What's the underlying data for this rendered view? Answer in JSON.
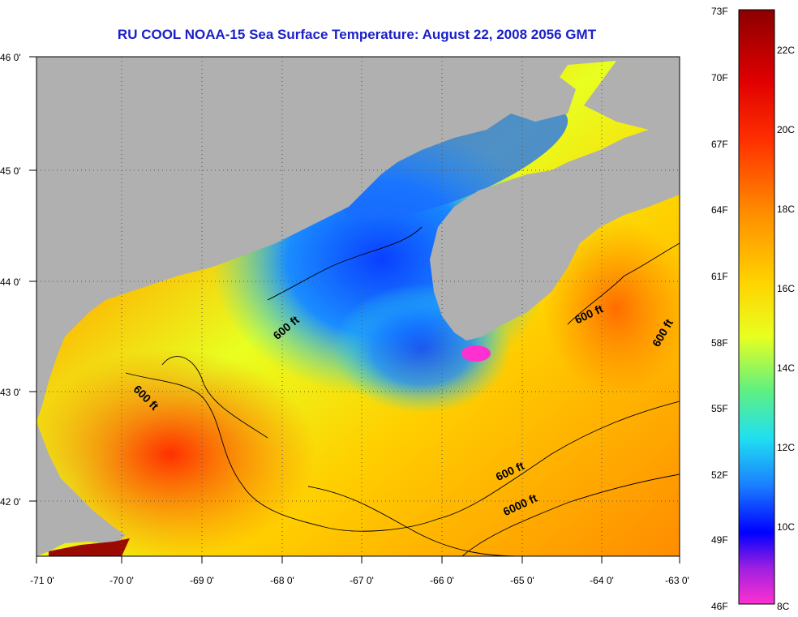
{
  "title": "RU COOL  NOAA-15  Sea Surface Temperature:  August 22, 2008 2056 GMT",
  "title_color": "#1b20c8",
  "land_color": "#b0b0b0",
  "longitude_labels": [
    "-71 0'",
    "-70 0'",
    "-69 0'",
    "-68 0'",
    "-67 0'",
    "-66 0'",
    "-65 0'",
    "-64 0'",
    "-63 0'"
  ],
  "latitude_labels": [
    "46 0'",
    "45 0'",
    "44 0'",
    "43 0'",
    "42 0'"
  ],
  "isobath_labels": [
    "600 ft",
    "600 ft",
    "600 ft",
    "600 ft",
    "600 ft",
    "6000 ft"
  ],
  "colorbar": {
    "fahrenheit_labels": [
      "73F",
      "70F",
      "67F",
      "64F",
      "61F",
      "58F",
      "55F",
      "52F",
      "49F",
      "46F"
    ],
    "celsius_labels": [
      "22C",
      "20C",
      "18C",
      "16C",
      "14C",
      "12C",
      "10C",
      "8C"
    ],
    "colors": [
      "#8b0000",
      "#ff1a00",
      "#ff7a00",
      "#ffd400",
      "#d8ff1a",
      "#30e8e0",
      "#1a9aff",
      "#0000ff",
      "#8020e0",
      "#ff30d0"
    ]
  }
}
